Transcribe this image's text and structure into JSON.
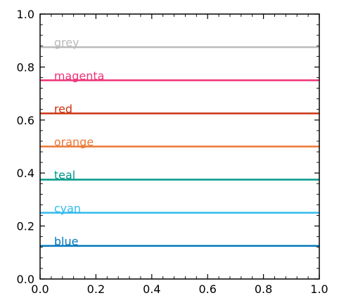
{
  "chart_data": {
    "type": "line",
    "title": "",
    "xlabel": "",
    "ylabel": "",
    "xlim": [
      0.0,
      1.0
    ],
    "ylim": [
      0.0,
      1.0
    ],
    "xticks": [
      "0.0",
      "0.2",
      "0.4",
      "0.6",
      "0.8",
      "1.0"
    ],
    "yticks": [
      "0.0",
      "0.2",
      "0.4",
      "0.6",
      "0.8",
      "1.0"
    ],
    "grid": false,
    "legend": "none",
    "annotations": [
      {
        "text": "grey",
        "x": 0.05,
        "y": 0.875
      },
      {
        "text": "magenta",
        "x": 0.05,
        "y": 0.75
      },
      {
        "text": "red",
        "x": 0.05,
        "y": 0.625
      },
      {
        "text": "orange",
        "x": 0.05,
        "y": 0.5
      },
      {
        "text": "teal",
        "x": 0.05,
        "y": 0.375
      },
      {
        "text": "cyan",
        "x": 0.05,
        "y": 0.25
      },
      {
        "text": "blue",
        "x": 0.05,
        "y": 0.125
      }
    ],
    "series": [
      {
        "color": "#bbbbbb",
        "x": [
          0.0,
          1.0
        ],
        "y": [
          0.875,
          0.875
        ]
      },
      {
        "color": "#ee3377",
        "x": [
          0.0,
          1.0
        ],
        "y": [
          0.75,
          0.75
        ]
      },
      {
        "color": "#cc3311",
        "x": [
          0.0,
          1.0
        ],
        "y": [
          0.625,
          0.625
        ]
      },
      {
        "color": "#ee7733",
        "x": [
          0.0,
          1.0
        ],
        "y": [
          0.5,
          0.5
        ]
      },
      {
        "color": "#009988",
        "x": [
          0.0,
          1.0
        ],
        "y": [
          0.375,
          0.375
        ]
      },
      {
        "color": "#33bbee",
        "x": [
          0.0,
          1.0
        ],
        "y": [
          0.25,
          0.25
        ]
      },
      {
        "color": "#0077bb",
        "x": [
          0.0,
          1.0
        ],
        "y": [
          0.125,
          0.125
        ]
      }
    ]
  }
}
